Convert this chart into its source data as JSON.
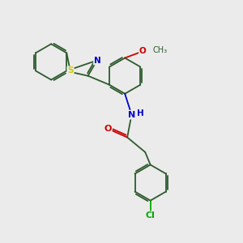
{
  "bg_color": "#ebebeb",
  "bond_color": "#2d5a2d",
  "bond_width": 1.3,
  "S_color": "#cccc00",
  "N_color": "#0000cc",
  "O_color": "#cc0000",
  "Cl_color": "#00aa00",
  "font_size": 7.5,
  "xlim": [
    0,
    10
  ],
  "ylim": [
    0,
    10
  ]
}
